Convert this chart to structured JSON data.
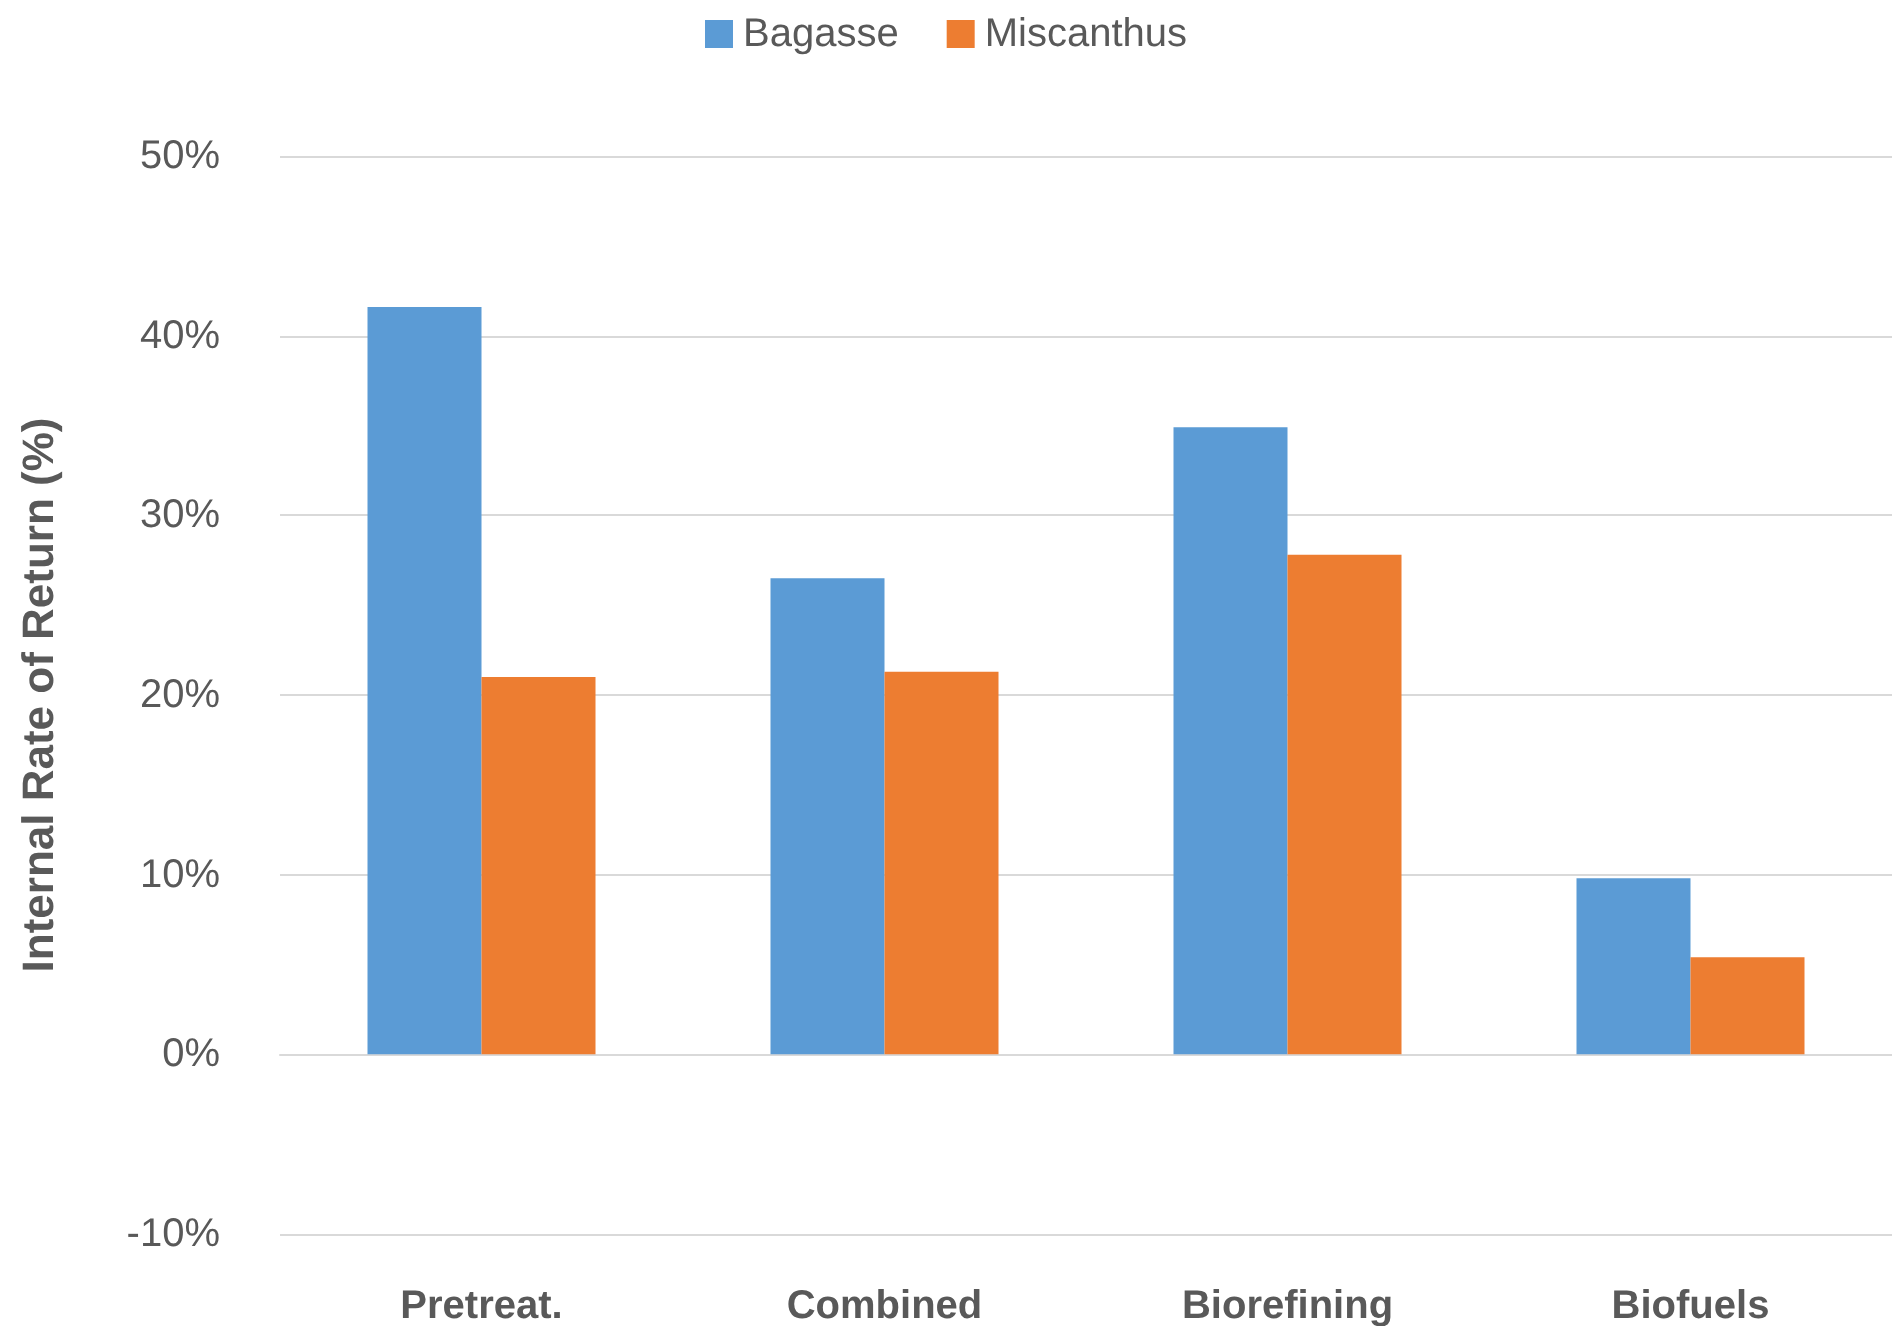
{
  "chart_data": {
    "type": "bar",
    "ylabel": "Internal Rate of Return (%)",
    "categories": [
      "Pretreat.",
      "Combined",
      "Biorefining",
      "Biofuels"
    ],
    "series": [
      {
        "name": "Bagasse",
        "color": "#5b9bd5",
        "values": [
          41.6,
          26.5,
          34.9,
          9.8
        ]
      },
      {
        "name": "Miscanthus",
        "color": "#ed7d31",
        "values": [
          21.0,
          21.3,
          27.8,
          5.4
        ]
      }
    ],
    "ylim": [
      -10,
      50
    ],
    "yticks": [
      {
        "value": -10,
        "label": "-10%"
      },
      {
        "value": 0,
        "label": "0%"
      },
      {
        "value": 10,
        "label": "10%"
      },
      {
        "value": 20,
        "label": "20%"
      },
      {
        "value": 30,
        "label": "30%"
      },
      {
        "value": 40,
        "label": "40%"
      },
      {
        "value": 50,
        "label": "50%"
      }
    ],
    "grid": "y",
    "legend": "top"
  }
}
